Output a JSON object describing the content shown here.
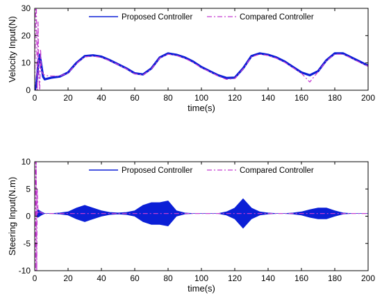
{
  "colors": {
    "proposed": "#0b1fd6",
    "compared": "#c33bd0",
    "axis": "#000000"
  },
  "chart_data": [
    {
      "type": "line",
      "xlabel": "time(s)",
      "ylabel": "Velocity Input(N)",
      "xlim": [
        0,
        200
      ],
      "ylim": [
        0,
        30
      ],
      "xticks": [
        0,
        20,
        40,
        60,
        80,
        100,
        120,
        140,
        160,
        180,
        200
      ],
      "yticks": [
        0,
        10,
        20,
        30
      ],
      "legend": {
        "placement": "top-center",
        "orientation": "horizontal"
      },
      "series": [
        {
          "name": "Proposed Controller",
          "style": "solid",
          "x": [
            0,
            1,
            2,
            3,
            4,
            5,
            6,
            8,
            10,
            15,
            20,
            25,
            30,
            35,
            40,
            45,
            50,
            55,
            60,
            65,
            70,
            75,
            80,
            85,
            90,
            95,
            100,
            105,
            110,
            115,
            120,
            125,
            130,
            135,
            140,
            145,
            150,
            155,
            160,
            165,
            170,
            175,
            180,
            185,
            190,
            195,
            200
          ],
          "y": [
            0,
            2,
            9,
            13,
            9,
            5,
            4,
            4.3,
            4.6,
            5,
            6.5,
            10,
            12.5,
            12.8,
            12.3,
            11,
            9.5,
            8,
            6.2,
            5.8,
            8,
            12,
            13.5,
            13,
            12,
            10.5,
            8.5,
            7,
            5.5,
            4.5,
            4.6,
            8,
            12.5,
            13.5,
            13,
            12,
            10.5,
            8.5,
            6.5,
            5.5,
            7,
            11,
            13.5,
            13.5,
            12,
            10.5,
            9
          ]
        },
        {
          "name": "Compared Controller",
          "style": "dashdot",
          "x": [
            0,
            0.5,
            1,
            1.5,
            2,
            2.5,
            3,
            3.5,
            4,
            5,
            6,
            8,
            10,
            15,
            20,
            25,
            30,
            35,
            40,
            45,
            50,
            55,
            60,
            65,
            70,
            75,
            80,
            85,
            90,
            95,
            100,
            105,
            110,
            115,
            120,
            125,
            130,
            135,
            140,
            145,
            150,
            155,
            160,
            165,
            170,
            175,
            180,
            185,
            190,
            195,
            200
          ],
          "y": [
            0,
            30,
            30,
            0,
            25,
            5,
            0,
            15,
            7,
            6,
            5.5,
            5.3,
            5.2,
            5.2,
            6.3,
            9.8,
            12.2,
            12.5,
            12,
            10.8,
            9.4,
            7.8,
            6,
            5.6,
            7.8,
            11.8,
            13.2,
            12.7,
            11.7,
            10.2,
            8.2,
            6.8,
            5.2,
            4,
            4.3,
            7.8,
            12.2,
            13.2,
            12.7,
            11.7,
            10.2,
            8.2,
            6.2,
            3,
            6.8,
            10.8,
            13.2,
            13.2,
            11.7,
            10.2,
            8.8
          ]
        }
      ]
    },
    {
      "type": "line",
      "xlabel": "time(s)",
      "ylabel": "Steering Input(N.m)",
      "xlim": [
        0,
        200
      ],
      "ylim": [
        -10,
        10
      ],
      "xticks": [
        0,
        20,
        40,
        60,
        80,
        100,
        120,
        140,
        160,
        180,
        200
      ],
      "yticks": [
        -10,
        -5,
        0,
        5,
        10
      ],
      "legend": {
        "placement": "top-center",
        "orientation": "horizontal"
      },
      "series": [
        {
          "name": "Proposed Controller",
          "style": "solid",
          "x": [
            0,
            2,
            4,
            6,
            10,
            15,
            20,
            25,
            30,
            35,
            40,
            45,
            50,
            55,
            60,
            65,
            70,
            75,
            80,
            85,
            90,
            95,
            100,
            105,
            110,
            115,
            120,
            125,
            130,
            135,
            140,
            145,
            150,
            155,
            160,
            165,
            170,
            175,
            180,
            185,
            190,
            195,
            200
          ],
          "y": [
            0.5,
            1.2,
            0.8,
            0.5,
            0.5,
            0.6,
            0.8,
            1.5,
            2.0,
            1.5,
            1.0,
            0.7,
            0.6,
            0.7,
            1.0,
            2.0,
            2.5,
            2.5,
            2.8,
            1.0,
            0.6,
            0.5,
            0.5,
            0.5,
            0.5,
            0.8,
            1.5,
            3.2,
            1.5,
            0.8,
            0.6,
            0.5,
            0.5,
            0.6,
            0.8,
            1.2,
            1.5,
            1.5,
            1.0,
            0.6,
            0.5,
            0.5,
            0.5
          ]
        },
        {
          "name": "Compared Controller",
          "style": "dashdot",
          "x": [
            0,
            0.3,
            0.6,
            0.9,
            1.2,
            1.5,
            2,
            3,
            5,
            10,
            20,
            40,
            60,
            80,
            100,
            120,
            140,
            160,
            180,
            200
          ],
          "y": [
            0,
            10,
            -10,
            10,
            -10,
            5,
            0.5,
            0.8,
            0.5,
            0.5,
            0.5,
            0.5,
            0.5,
            0.5,
            0.5,
            0.5,
            0.5,
            0.5,
            0.5,
            0.5
          ]
        }
      ]
    }
  ]
}
